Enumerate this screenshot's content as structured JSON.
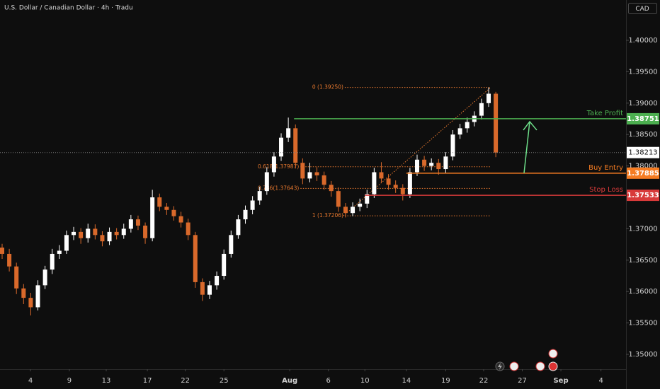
{
  "chart_data": {
    "type": "candlestick",
    "title": "U.S. Dollar / Canadian Dollar · 4h · Tradu",
    "currency": "CAD",
    "up_color": "#ffffff",
    "down_color": "#d9692b",
    "grid": false,
    "open": [
      1.367,
      1.366,
      1.364,
      1.3605,
      1.359,
      1.3575,
      1.361,
      1.3635,
      1.366,
      1.3665,
      1.369,
      1.3695,
      1.3685,
      1.37,
      1.369,
      1.368,
      1.3695,
      1.369,
      1.37,
      1.3715,
      1.3705,
      1.3685,
      1.375,
      1.3735,
      1.373,
      1.372,
      1.371,
      1.369,
      1.3615,
      1.3595,
      1.361,
      1.3625,
      1.366,
      1.369,
      1.3715,
      1.373,
      1.3745,
      1.376,
      1.379,
      1.3815,
      1.3845,
      1.386,
      1.3805,
      1.378,
      1.379,
      1.3785,
      1.377,
      1.376,
      1.3735,
      1.3725,
      1.3735,
      1.374,
      1.3755,
      1.379,
      1.378,
      1.377,
      1.3765,
      1.3755,
      1.379,
      1.381,
      1.38,
      1.3805,
      1.3795,
      1.3815,
      1.385,
      1.386,
      1.387,
      1.388,
      1.39,
      1.3915
    ],
    "high": [
      1.3676,
      1.3668,
      1.3646,
      1.3612,
      1.3598,
      1.3618,
      1.3641,
      1.3668,
      1.3674,
      1.3697,
      1.3703,
      1.3701,
      1.3708,
      1.3707,
      1.3696,
      1.3702,
      1.3701,
      1.3708,
      1.3722,
      1.3721,
      1.371,
      1.3762,
      1.3756,
      1.3741,
      1.3736,
      1.3727,
      1.3716,
      1.3695,
      1.3621,
      1.3617,
      1.3632,
      1.3667,
      1.3697,
      1.3722,
      1.3737,
      1.3752,
      1.3767,
      1.3798,
      1.3822,
      1.3852,
      1.3877,
      1.3866,
      1.3812,
      1.3805,
      1.3798,
      1.3791,
      1.3776,
      1.3766,
      1.3741,
      1.3742,
      1.3748,
      1.3762,
      1.3797,
      1.3806,
      1.3787,
      1.3777,
      1.3771,
      1.3797,
      1.3818,
      1.3816,
      1.3812,
      1.3811,
      1.3822,
      1.3857,
      1.3867,
      1.3877,
      1.3887,
      1.3907,
      1.3925,
      1.3918
    ],
    "low": [
      1.3652,
      1.3632,
      1.3596,
      1.358,
      1.3562,
      1.357,
      1.3604,
      1.3628,
      1.3652,
      1.366,
      1.3682,
      1.3676,
      1.3678,
      1.3683,
      1.3672,
      1.3674,
      1.3683,
      1.3684,
      1.3694,
      1.3698,
      1.3676,
      1.368,
      1.3728,
      1.3722,
      1.3713,
      1.3702,
      1.3682,
      1.3606,
      1.3585,
      1.3588,
      1.3603,
      1.3619,
      1.3654,
      1.3684,
      1.3708,
      1.3723,
      1.3738,
      1.3754,
      1.3783,
      1.3808,
      1.3838,
      1.3796,
      1.3771,
      1.3774,
      1.3776,
      1.3762,
      1.3751,
      1.3727,
      1.3718,
      1.372,
      1.3728,
      1.3733,
      1.3749,
      1.3773,
      1.3762,
      1.3757,
      1.3745,
      1.3749,
      1.3784,
      1.3792,
      1.3793,
      1.3786,
      1.3789,
      1.3809,
      1.3843,
      1.3853,
      1.3863,
      1.3874,
      1.3894,
      1.3814
    ],
    "close": [
      1.366,
      1.364,
      1.3605,
      1.359,
      1.3575,
      1.361,
      1.3635,
      1.366,
      1.3665,
      1.369,
      1.3695,
      1.3685,
      1.37,
      1.369,
      1.368,
      1.3695,
      1.369,
      1.37,
      1.3715,
      1.3705,
      1.3685,
      1.375,
      1.3735,
      1.373,
      1.372,
      1.371,
      1.369,
      1.3615,
      1.3595,
      1.361,
      1.3625,
      1.366,
      1.369,
      1.3715,
      1.373,
      1.3745,
      1.376,
      1.379,
      1.3815,
      1.3845,
      1.386,
      1.3805,
      1.378,
      1.379,
      1.3785,
      1.377,
      1.376,
      1.3735,
      1.3725,
      1.3735,
      1.374,
      1.3755,
      1.379,
      1.378,
      1.377,
      1.3765,
      1.3755,
      1.379,
      1.381,
      1.38,
      1.3805,
      1.3795,
      1.3815,
      1.385,
      1.386,
      1.387,
      1.388,
      1.39,
      1.3915,
      1.38213
    ],
    "xlim": [
      0,
      87.2
    ],
    "xticks": [
      {
        "value": 3.96,
        "label": "4"
      },
      {
        "value": 9.4,
        "label": "9"
      },
      {
        "value": 14.55,
        "label": "13"
      },
      {
        "value": 20.3,
        "label": "17"
      },
      {
        "value": 25.6,
        "label": "22"
      },
      {
        "value": 31,
        "label": "25"
      },
      {
        "value": 40.2,
        "label": "Aug"
      },
      {
        "value": 45.6,
        "label": "6"
      },
      {
        "value": 50.7,
        "label": "10"
      },
      {
        "value": 56.5,
        "label": "14"
      },
      {
        "value": 62,
        "label": "19"
      },
      {
        "value": 67.3,
        "label": "22"
      },
      {
        "value": 72.7,
        "label": "27"
      },
      {
        "value": 78.1,
        "label": "Sep"
      },
      {
        "value": 83.7,
        "label": "4"
      }
    ],
    "ylim": [
      1.34764,
      1.40642
    ],
    "yticks": [
      {
        "value": 1.4,
        "label": "1.40000"
      },
      {
        "value": 1.395,
        "label": "1.39500"
      },
      {
        "value": 1.39,
        "label": "1.39000"
      },
      {
        "value": 1.385,
        "label": "1.38500"
      },
      {
        "value": 1.38,
        "label": "1.38000"
      },
      {
        "value": 1.37,
        "label": "1.37000"
      },
      {
        "value": 1.365,
        "label": "1.36500"
      },
      {
        "value": 1.36,
        "label": "1.36000"
      },
      {
        "value": 1.355,
        "label": "1.35500"
      },
      {
        "value": 1.35,
        "label": "1.35000"
      }
    ],
    "levels": [
      {
        "name": "Take Profit",
        "value": 1.38751,
        "color": "#4caf50"
      },
      {
        "name": "Buy Entry",
        "value": 1.37885,
        "color": "#f57c22"
      },
      {
        "name": "Stop Loss",
        "value": 1.37533,
        "color": "#d83a3a"
      }
    ],
    "fib_color": "#e8782e",
    "fib_levels": [
      {
        "label": "0 (1.39250)",
        "value": 1.3925
      },
      {
        "label": "0.618(1.37987)",
        "value": 1.37987
      },
      {
        "label": "0.786(1.37643)",
        "value": 1.37643
      },
      {
        "label": "1 (1.37206)",
        "value": 1.37206
      }
    ]
  }
}
